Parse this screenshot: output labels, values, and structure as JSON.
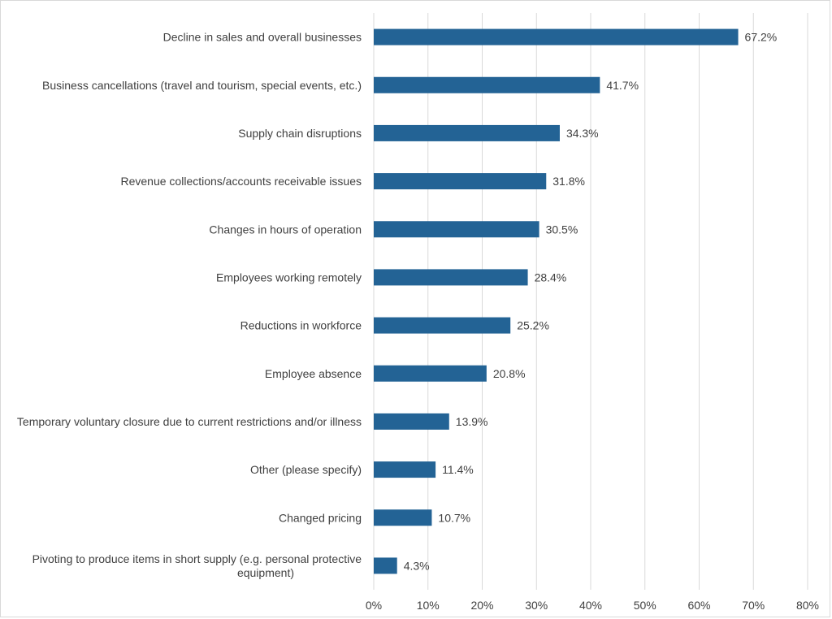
{
  "chart_data": {
    "type": "bar",
    "orientation": "horizontal",
    "categories": [
      "Decline in sales and overall businesses",
      "Business cancellations (travel and tourism, special events, etc.)",
      "Supply chain disruptions",
      "Revenue collections/accounts receivable issues",
      "Changes in hours of operation",
      "Employees working remotely",
      "Reductions in workforce",
      "Employee absence",
      "Temporary voluntary closure due to current restrictions and/or illness",
      "Other (please specify)",
      "Changed pricing",
      "Pivoting to produce items in short supply (e.g. personal protective equipment)"
    ],
    "values": [
      67.2,
      41.7,
      34.3,
      31.8,
      30.5,
      28.4,
      25.2,
      20.8,
      13.9,
      11.4,
      10.7,
      4.3
    ],
    "data_labels": [
      "67.2%",
      "41.7%",
      "34.3%",
      "31.8%",
      "30.5%",
      "28.4%",
      "25.2%",
      "20.8%",
      "13.9%",
      "11.4%",
      "10.7%",
      "4.3%"
    ],
    "xlim": [
      0,
      80
    ],
    "x_ticks": [
      0,
      10,
      20,
      30,
      40,
      50,
      60,
      70,
      80
    ],
    "x_tick_labels": [
      "0%",
      "10%",
      "20%",
      "30%",
      "40%",
      "50%",
      "60%",
      "70%",
      "80%"
    ],
    "grid": "vertical",
    "bar_color": "#236395",
    "grid_color": "#d9d9d9",
    "legend": "none"
  }
}
